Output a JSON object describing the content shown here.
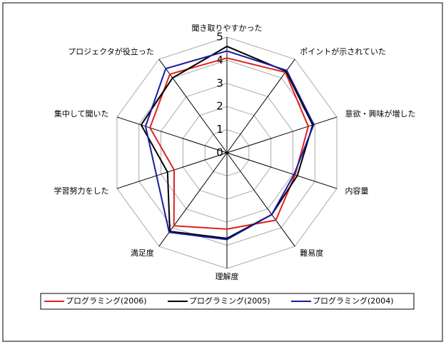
{
  "chart_data": {
    "type": "radar",
    "categories": [
      "聞き取りやすかった",
      "ポイントが示されていた",
      "意欲・興味が増した",
      "内容量",
      "難易度",
      "理解度",
      "満足度",
      "学習努力をした",
      "集中して聞いた",
      "プロジェクタが役立った"
    ],
    "series": [
      {
        "name": "プログラミング(2006)",
        "color": "#e02020",
        "values": [
          4.1,
          4.3,
          3.7,
          3.1,
          3.6,
          3.3,
          3.9,
          2.4,
          3.5,
          4.2
        ]
      },
      {
        "name": "プログラミング(2005)",
        "color": "#000000",
        "values": [
          4.6,
          4.35,
          3.9,
          3.2,
          3.3,
          3.7,
          4.2,
          2.7,
          3.9,
          4.0
        ]
      },
      {
        "name": "プログラミング(2004)",
        "color": "#1a1aa0",
        "values": [
          4.4,
          4.4,
          3.95,
          3.05,
          3.3,
          3.75,
          4.25,
          3.2,
          3.7,
          4.5
        ]
      }
    ],
    "rlim": [
      0,
      5
    ],
    "rticks": [
      0,
      1,
      2,
      3,
      4,
      5
    ],
    "grid": true,
    "legend": "bottom"
  }
}
